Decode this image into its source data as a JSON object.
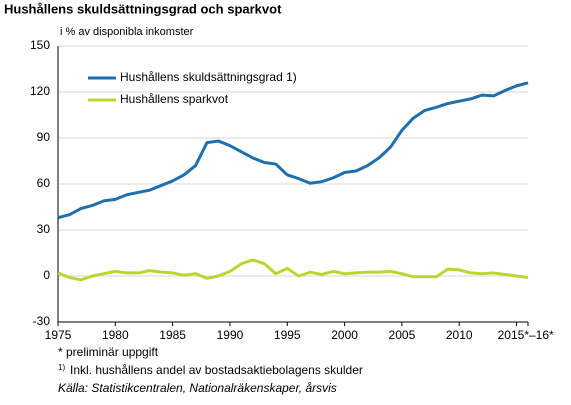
{
  "chart_data": {
    "type": "line",
    "title": "Hushållens skuldsättningsgrad och sparkvot",
    "subtitle": "i % av disponibla inkomster",
    "x": [
      1975,
      1976,
      1977,
      1978,
      1979,
      1980,
      1981,
      1982,
      1983,
      1984,
      1985,
      1986,
      1987,
      1988,
      1989,
      1990,
      1991,
      1992,
      1993,
      1994,
      1995,
      1996,
      1997,
      1998,
      1999,
      2000,
      2001,
      2002,
      2003,
      2004,
      2005,
      2006,
      2007,
      2008,
      2009,
      2010,
      2011,
      2012,
      2013,
      2014,
      2015,
      2016
    ],
    "series": [
      {
        "name": "Hushållens skuldsättningsgrad 1)",
        "color": "#1f6fad",
        "values": [
          38,
          40,
          44,
          46,
          49,
          50,
          53,
          54.5,
          56,
          59,
          62,
          66,
          72,
          87,
          88,
          85,
          81,
          77,
          74,
          73,
          66,
          63.5,
          60.5,
          61.5,
          64,
          67.5,
          68.5,
          72,
          77,
          84,
          95,
          103,
          108,
          110,
          112.5,
          114,
          115.5,
          118,
          117.5,
          121,
          124,
          126
        ]
      },
      {
        "name": "Hushållens sparkvot",
        "color": "#bcd531",
        "values": [
          2,
          -1,
          -2.5,
          0,
          1.5,
          3,
          2,
          2,
          3.5,
          2.5,
          2,
          0.5,
          1.5,
          -1.5,
          0,
          3,
          8,
          10.5,
          8,
          1.5,
          5,
          0,
          2.5,
          1,
          3,
          1.5,
          2,
          2.5,
          2.5,
          3,
          1.5,
          -0.5,
          -0.5,
          -0.5,
          4.5,
          4,
          2,
          1.5,
          2,
          1,
          0,
          -1
        ]
      }
    ],
    "xlim": [
      1975,
      2016
    ],
    "xticks": [
      1975,
      1980,
      1985,
      1990,
      1995,
      2000,
      2005,
      2010,
      {
        "value": 2015,
        "label": "2015*"
      },
      {
        "value": 2016,
        "label": "–16*"
      }
    ],
    "ylim": [
      -30,
      150
    ],
    "yticks": [
      -30,
      0,
      30,
      60,
      90,
      120,
      150
    ],
    "grid": true,
    "legend": "upper-left",
    "note_prelim": "* preliminär uppgift",
    "note_marker": "1)",
    "note_text": "Inkl. hushållens andel av bostadsaktiebolagens skulder",
    "source": "Källa: Statistikcentralen, Nationalräkenskaper, årsvis"
  }
}
